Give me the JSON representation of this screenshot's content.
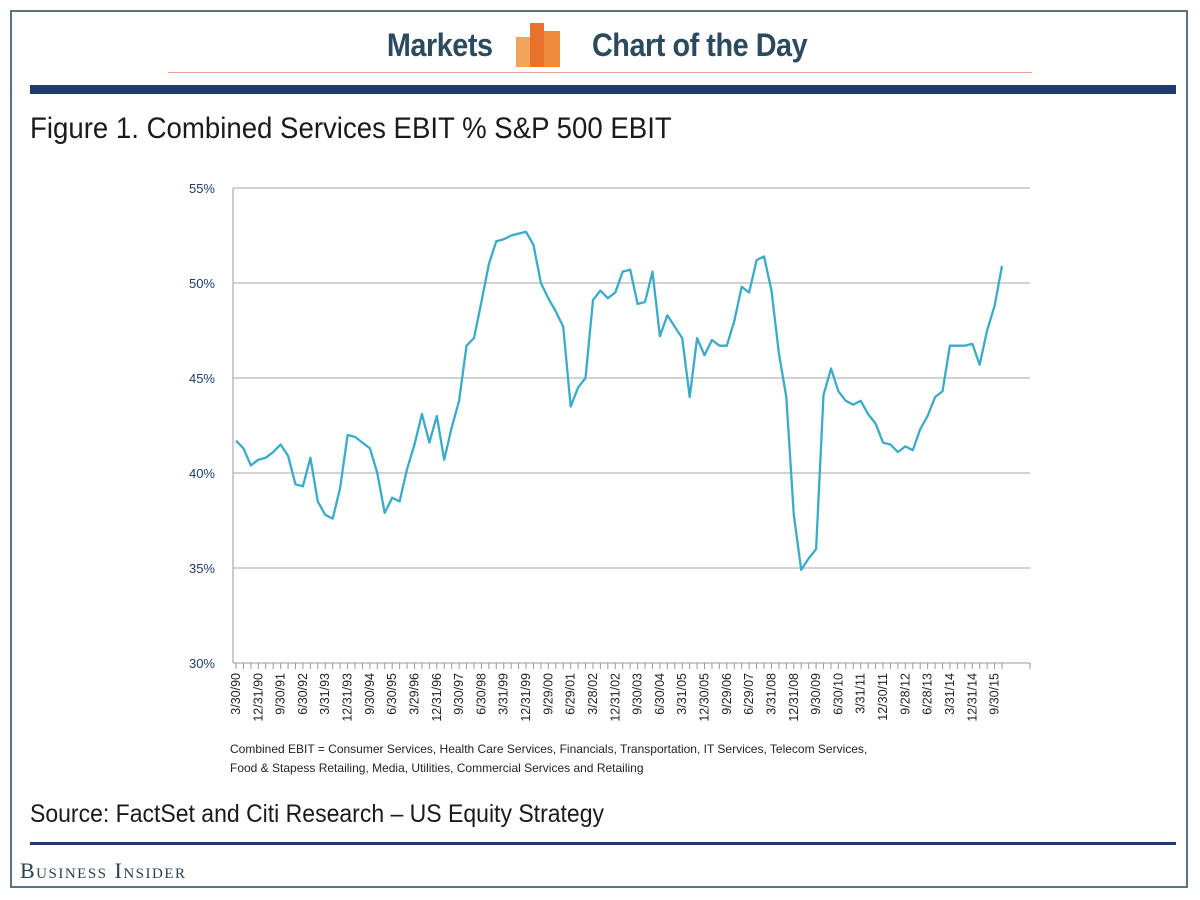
{
  "header": {
    "left_text": "Markets",
    "right_text": "Chart of the Day",
    "icon": "bar-chart-icon",
    "text_color": "#2c4a5e",
    "icon_colors": [
      "#f2a55a",
      "#e8712b",
      "#f08a3c"
    ]
  },
  "figure_title": "Figure 1. Combined Services EBIT % S&P 500 EBIT",
  "footnote_lines": [
    "Combined EBIT =  Consumer Services, Health Care Services, Financials, Transportation, IT Services, Telecom Services,",
    "Food & Stapess Retailing, Media, Utilities, Commercial Services and Retailing"
  ],
  "source": "Source: FactSet and Citi Research – US Equity Strategy",
  "brand": "Business Insider",
  "colors": {
    "line": "#3aabc8",
    "rule": "#1f3a6d",
    "grid": "#c4c4c4",
    "tick_label": "#1f3a6d"
  },
  "chart_data": {
    "type": "line",
    "title": "Figure 1. Combined Services EBIT % S&P 500 EBIT",
    "xlabel": "",
    "ylabel": "",
    "ylim": [
      30,
      55
    ],
    "y_ticks": [
      "30%",
      "35%",
      "40%",
      "45%",
      "50%",
      "55%"
    ],
    "x_tick_labels": [
      "3/30/90",
      "12/31/90",
      "9/30/91",
      "6/30/92",
      "3/31/93",
      "12/31/93",
      "9/30/94",
      "6/30/95",
      "3/29/96",
      "12/31/96",
      "9/30/97",
      "6/30/98",
      "3/31/99",
      "12/31/99",
      "9/29/00",
      "6/29/01",
      "3/28/02",
      "12/31/02",
      "9/30/03",
      "6/30/04",
      "3/31/05",
      "12/30/05",
      "9/29/06",
      "6/29/07",
      "3/31/08",
      "12/31/08",
      "9/30/09",
      "6/30/10",
      "3/31/11",
      "12/30/11",
      "9/28/12",
      "6/28/13",
      "3/31/14",
      "12/31/14",
      "9/30/15"
    ],
    "grid": true,
    "series": [
      {
        "values": [
          41.7,
          41.3,
          40.4,
          40.7,
          40.8,
          41.1,
          41.5,
          40.9,
          39.4,
          39.3,
          40.8,
          38.5,
          37.8,
          37.6,
          39.2,
          42.0,
          41.9,
          41.6,
          41.3,
          40.0,
          37.9,
          38.7,
          38.5,
          40.2,
          41.5,
          43.1,
          41.6,
          43.0,
          40.7,
          42.4,
          43.8,
          46.7,
          47.1,
          49.0,
          51.0,
          52.2,
          52.3,
          52.5,
          52.6,
          52.7,
          52.0,
          50.0,
          49.2,
          48.5,
          47.7,
          43.5,
          44.5,
          45.0,
          49.1,
          49.6,
          49.2,
          49.5,
          50.6,
          50.7,
          48.9,
          49.0,
          50.6,
          47.2,
          48.3,
          47.7,
          47.1,
          44.0,
          47.1,
          46.2,
          47.0,
          46.7,
          46.7,
          48.0,
          49.8,
          49.5,
          51.2,
          51.4,
          49.6,
          46.3,
          44.0,
          37.8,
          34.9,
          35.5,
          36.0,
          44.1,
          45.5,
          44.3,
          43.8,
          43.6,
          43.8,
          43.1,
          42.6,
          41.6,
          41.5,
          41.1,
          41.4,
          41.2,
          42.3,
          43.0,
          44.0,
          44.3,
          46.7,
          46.7,
          46.7,
          46.8,
          45.7,
          47.5,
          48.8,
          50.9
        ]
      }
    ]
  }
}
